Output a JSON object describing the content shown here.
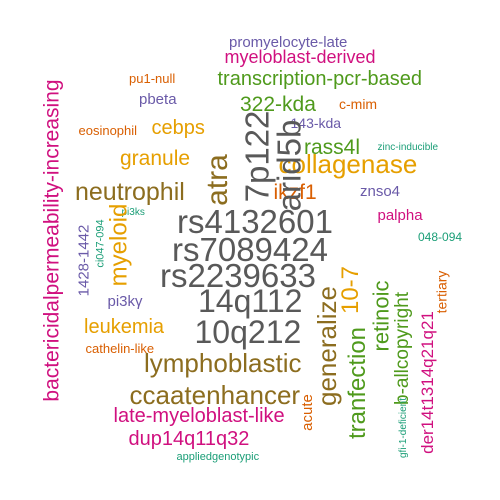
{
  "colors": {
    "gray": "#595959",
    "brown": "#8c6d1f",
    "orange": "#e69f00",
    "green": "#4f9a1c",
    "magenta": "#d0107f",
    "purple": "#6a5aa8",
    "teal": "#1b9e77",
    "rust": "#d95f02"
  },
  "words": [
    {
      "text": "promyelocyte-late",
      "color": "#6a5aa8",
      "vertical": false
    },
    {
      "text": "myeloblast-derived",
      "color": "#d0107f",
      "vertical": false
    },
    {
      "text": "pu1-null",
      "color": "#d95f02",
      "vertical": false
    },
    {
      "text": "transcription-pcr-based",
      "color": "#4f9a1c",
      "vertical": false
    },
    {
      "text": "pbeta",
      "color": "#6a5aa8",
      "vertical": false
    },
    {
      "text": "322-kda",
      "color": "#4f9a1c",
      "vertical": false
    },
    {
      "text": "c-mim",
      "color": "#d95f02",
      "vertical": false
    },
    {
      "text": "cebps",
      "color": "#e69f00",
      "vertical": false
    },
    {
      "text": "143-kda",
      "color": "#6a5aa8",
      "vertical": false
    },
    {
      "text": "eosinophil",
      "color": "#d95f02",
      "vertical": false
    },
    {
      "text": "rass4l",
      "color": "#4f9a1c",
      "vertical": false
    },
    {
      "text": "zinc-inducible",
      "color": "#1b9e77",
      "vertical": false
    },
    {
      "text": "collagenase",
      "color": "#e69f00",
      "vertical": false
    },
    {
      "text": "granule",
      "color": "#e69f00",
      "vertical": false
    },
    {
      "text": "neutrophil",
      "color": "#8c6d1f",
      "vertical": false
    },
    {
      "text": "ikzf1",
      "color": "#d95f02",
      "vertical": false
    },
    {
      "text": "znso4",
      "color": "#6a5aa8",
      "vertical": false
    },
    {
      "text": "pi3ks",
      "color": "#1b9e77",
      "vertical": false
    },
    {
      "text": "rs4132601",
      "color": "#595959",
      "vertical": false
    },
    {
      "text": "palpha",
      "color": "#d0107f",
      "vertical": false
    },
    {
      "text": "048-094",
      "color": "#1b9e77",
      "vertical": false
    },
    {
      "text": "rs7089424",
      "color": "#595959",
      "vertical": false
    },
    {
      "text": "rs2239633",
      "color": "#595959",
      "vertical": false
    },
    {
      "text": "pi3kγ",
      "color": "#6a5aa8",
      "vertical": false
    },
    {
      "text": "14q112",
      "color": "#595959",
      "vertical": false
    },
    {
      "text": "leukemia",
      "color": "#e69f00",
      "vertical": false
    },
    {
      "text": "10q212",
      "color": "#595959",
      "vertical": false
    },
    {
      "text": "cathelin-like",
      "color": "#d95f02",
      "vertical": false
    },
    {
      "text": "lymphoblastic",
      "color": "#8c6d1f",
      "vertical": false
    },
    {
      "text": "ccaatenhancer",
      "color": "#8c6d1f",
      "vertical": false
    },
    {
      "text": "late-myeloblast-like",
      "color": "#d0107f",
      "vertical": false
    },
    {
      "text": "dup14q11q32",
      "color": "#d0107f",
      "vertical": false
    },
    {
      "text": "appliedgenotypic",
      "color": "#1b9e77",
      "vertical": false
    },
    {
      "text": "bactericidalpermeability-increasing",
      "color": "#d0107f",
      "vertical": true
    },
    {
      "text": "1428-1442",
      "color": "#6a5aa8",
      "vertical": true
    },
    {
      "text": "ci047-094",
      "color": "#1b9e77",
      "vertical": true
    },
    {
      "text": "myeloid",
      "color": "#e69f00",
      "vertical": true
    },
    {
      "text": "atra",
      "color": "#8c6d1f",
      "vertical": true
    },
    {
      "text": "7p122",
      "color": "#595959",
      "vertical": true
    },
    {
      "text": "arid5b",
      "color": "#595959",
      "vertical": true
    },
    {
      "text": "generalize",
      "color": "#8c6d1f",
      "vertical": true
    },
    {
      "text": "10-7",
      "color": "#e69f00",
      "vertical": true
    },
    {
      "text": "acute",
      "color": "#d95f02",
      "vertical": true
    },
    {
      "text": "tranfection",
      "color": "#4f9a1c",
      "vertical": true
    },
    {
      "text": "retinoic",
      "color": "#4f9a1c",
      "vertical": true
    },
    {
      "text": "b-allcopyright",
      "color": "#4f9a1c",
      "vertical": true
    },
    {
      "text": "gfi-1-deficient",
      "color": "#1b9e77",
      "vertical": true
    },
    {
      "text": "der14t1314q21q21",
      "color": "#d0107f",
      "vertical": true
    },
    {
      "text": "tertiary",
      "color": "#d95f02",
      "vertical": true
    }
  ]
}
